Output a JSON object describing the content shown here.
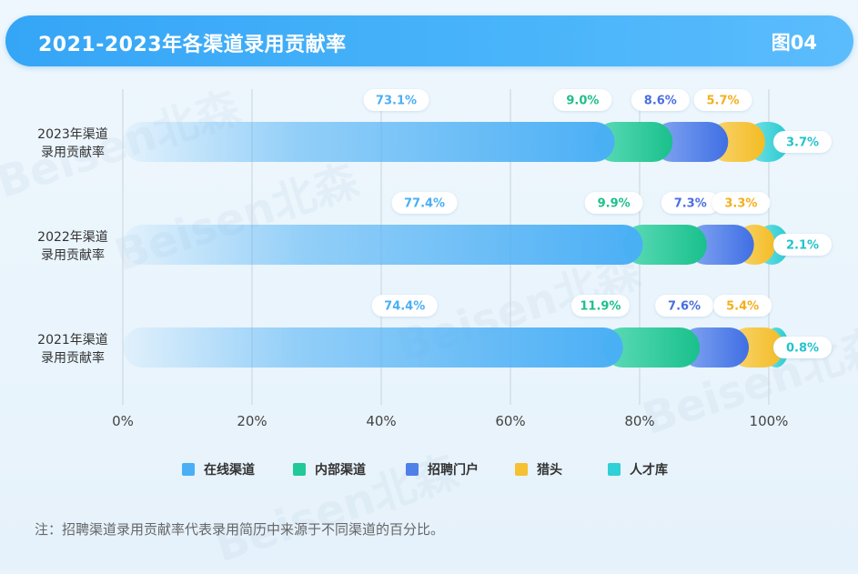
{
  "header": {
    "title": "2021-2023年各渠道录用贡献率",
    "figure_number": "图04"
  },
  "legend": [
    {
      "label": "在线渠道",
      "color": "#4aaff5"
    },
    {
      "label": "内部渠道",
      "color": "#20c997"
    },
    {
      "label": "招聘门户",
      "color": "#4f7fe8"
    },
    {
      "label": "猎头",
      "color": "#f5c133"
    },
    {
      "label": "人才库",
      "color": "#2fd0d6"
    }
  ],
  "note": "注：招聘渠道录用贡献率代表录用简历中来源于不同渠道的百分比。",
  "watermark": "Beisen北森",
  "chart_data": {
    "type": "bar",
    "orientation": "horizontal",
    "stacked": true,
    "categories": [
      "2023年渠道录用贡献率",
      "2022年渠道录用贡献率",
      "2021年渠道录用贡献率"
    ],
    "series": [
      {
        "name": "在线渠道",
        "values": [
          73.1,
          77.4,
          74.4
        ],
        "color": "#4aaff5",
        "label_color": "#4aaff5"
      },
      {
        "name": "内部渠道",
        "values": [
          9.0,
          9.9,
          11.9
        ],
        "color": "#20c997",
        "label_color": "#1fbf8c"
      },
      {
        "name": "招聘门户",
        "values": [
          8.6,
          7.3,
          7.6
        ],
        "color": "#4f7fe8",
        "label_color": "#4a6ee0"
      },
      {
        "name": "猎头",
        "values": [
          5.7,
          3.3,
          5.4
        ],
        "color": "#f5c133",
        "label_color": "#f2b01c"
      },
      {
        "name": "人才库",
        "values": [
          3.7,
          2.1,
          0.8
        ],
        "color": "#2fd0d6",
        "label_color": "#22c3cc"
      }
    ],
    "value_labels": [
      [
        "73.1%",
        "9.0%",
        "8.6%",
        "5.7%",
        "3.7%"
      ],
      [
        "77.4%",
        "9.9%",
        "7.3%",
        "3.3%",
        "2.1%"
      ],
      [
        "74.4%",
        "11.9%",
        "7.6%",
        "5.4%",
        "0.8%"
      ]
    ],
    "category_lines": [
      [
        "2023年渠道",
        "录用贡献率"
      ],
      [
        "2022年渠道",
        "录用贡献率"
      ],
      [
        "2021年渠道",
        "录用贡献率"
      ]
    ],
    "xlim": [
      0,
      100
    ],
    "xticks": [
      0,
      20,
      40,
      60,
      80,
      100
    ],
    "xtick_labels": [
      "0%",
      "20%",
      "40%",
      "60%",
      "80%",
      "100%"
    ],
    "grid": true,
    "legend_position": "bottom"
  }
}
